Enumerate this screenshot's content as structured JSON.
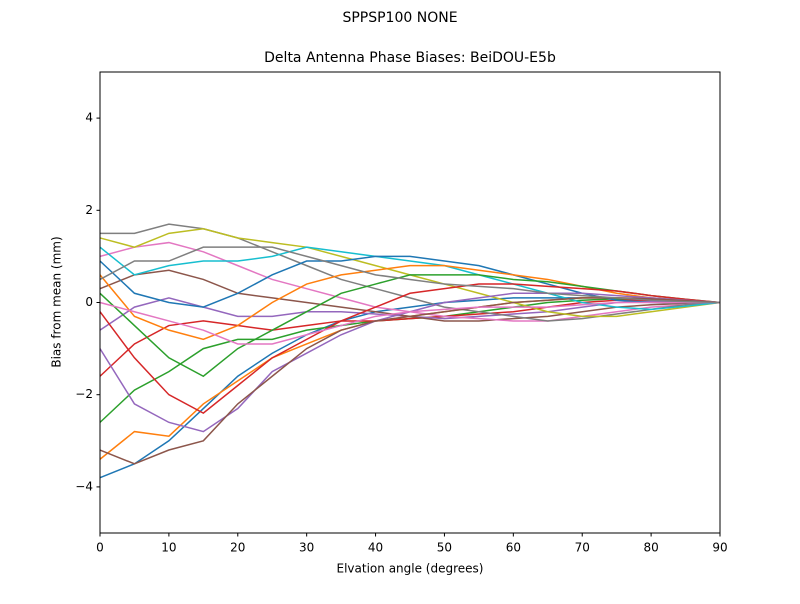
{
  "chart_data": {
    "type": "line",
    "suptitle": "SPPSP100        NONE",
    "title": "Delta Antenna Phase Biases: BeiDOU-E5b",
    "x_label": "Elvation angle (degrees)",
    "y_label": "Bias from mean (mm)",
    "xlim": [
      0,
      90
    ],
    "ylim": [
      -5,
      5
    ],
    "xticks": [
      0,
      10,
      20,
      30,
      40,
      50,
      60,
      70,
      80,
      90
    ],
    "yticks": [
      {
        "value": -4,
        "label": "−4"
      },
      {
        "value": -2,
        "label": "−2"
      },
      0,
      2,
      4
    ],
    "x": [
      0,
      5,
      10,
      15,
      20,
      25,
      30,
      35,
      40,
      45,
      50,
      55,
      60,
      65,
      70,
      75,
      80,
      85,
      90
    ],
    "series": [
      {
        "color": "#1f77b4",
        "values": [
          -3.8,
          -3.5,
          -3.0,
          -2.3,
          -1.6,
          -1.1,
          -0.7,
          -0.4,
          -0.2,
          -0.1,
          0.0,
          0.05,
          0.1,
          0.1,
          0.1,
          0.1,
          0.08,
          0.04,
          0
        ]
      },
      {
        "color": "#ff7f0e",
        "values": [
          -3.4,
          -2.8,
          -2.9,
          -2.2,
          -1.7,
          -1.2,
          -0.9,
          -0.6,
          -0.4,
          -0.3,
          -0.2,
          -0.1,
          0,
          0.05,
          0.1,
          0.1,
          0.08,
          0.04,
          0
        ]
      },
      {
        "color": "#2ca02c",
        "values": [
          -2.6,
          -1.9,
          -1.5,
          -1.0,
          -0.8,
          -0.8,
          -0.6,
          -0.5,
          -0.4,
          -0.35,
          -0.3,
          -0.2,
          -0.1,
          0,
          0.05,
          0.08,
          0.06,
          0.03,
          0
        ]
      },
      {
        "color": "#d62728",
        "values": [
          -1.6,
          -0.9,
          -0.5,
          -0.4,
          -0.5,
          -0.6,
          -0.5,
          -0.4,
          -0.4,
          -0.35,
          -0.3,
          -0.25,
          -0.2,
          -0.1,
          0,
          0.05,
          0.05,
          0.02,
          0
        ]
      },
      {
        "color": "#9467bd",
        "values": [
          -0.6,
          -0.1,
          0.1,
          -0.1,
          -0.3,
          -0.3,
          -0.2,
          -0.2,
          -0.25,
          -0.3,
          -0.35,
          -0.3,
          -0.25,
          -0.2,
          -0.1,
          0,
          0.02,
          0.01,
          0
        ]
      },
      {
        "color": "#8c564b",
        "values": [
          0.3,
          0.6,
          0.7,
          0.5,
          0.2,
          0.1,
          0.0,
          -0.1,
          -0.2,
          -0.3,
          -0.4,
          -0.4,
          -0.35,
          -0.3,
          -0.2,
          -0.1,
          -0.05,
          -0.02,
          0
        ]
      },
      {
        "color": "#e377c2",
        "values": [
          1.0,
          1.2,
          1.3,
          1.1,
          0.8,
          0.5,
          0.3,
          0.1,
          -0.1,
          -0.2,
          -0.3,
          -0.35,
          -0.4,
          -0.4,
          -0.3,
          -0.2,
          -0.1,
          -0.05,
          0
        ]
      },
      {
        "color": "#7f7f7f",
        "values": [
          1.5,
          1.5,
          1.7,
          1.6,
          1.4,
          1.1,
          0.8,
          0.5,
          0.3,
          0.1,
          -0.1,
          -0.2,
          -0.3,
          -0.4,
          -0.35,
          -0.25,
          -0.15,
          -0.05,
          0
        ]
      },
      {
        "color": "#bcbd22",
        "values": [
          1.4,
          1.2,
          1.5,
          1.6,
          1.4,
          1.3,
          1.2,
          1.0,
          0.8,
          0.6,
          0.4,
          0.2,
          0.0,
          -0.2,
          -0.3,
          -0.3,
          -0.2,
          -0.1,
          0
        ]
      },
      {
        "color": "#17becf",
        "values": [
          1.2,
          0.6,
          0.8,
          0.9,
          0.9,
          1.0,
          1.2,
          1.1,
          1.0,
          0.9,
          0.8,
          0.6,
          0.4,
          0.2,
          0.0,
          -0.1,
          -0.15,
          -0.08,
          0
        ]
      },
      {
        "color": "#1f77b4",
        "values": [
          0.9,
          0.2,
          0.0,
          -0.1,
          0.2,
          0.6,
          0.9,
          0.9,
          1.0,
          1.0,
          0.9,
          0.8,
          0.6,
          0.4,
          0.2,
          0.05,
          0,
          0,
          0
        ]
      },
      {
        "color": "#ff7f0e",
        "values": [
          0.6,
          -0.3,
          -0.6,
          -0.8,
          -0.5,
          0.0,
          0.4,
          0.6,
          0.7,
          0.8,
          0.8,
          0.7,
          0.6,
          0.5,
          0.35,
          0.2,
          0.1,
          0.05,
          0
        ]
      },
      {
        "color": "#2ca02c",
        "values": [
          0.2,
          -0.5,
          -1.2,
          -1.6,
          -1.0,
          -0.6,
          -0.2,
          0.2,
          0.4,
          0.6,
          0.6,
          0.6,
          0.5,
          0.45,
          0.35,
          0.25,
          0.15,
          0.07,
          0
        ]
      },
      {
        "color": "#d62728",
        "values": [
          -0.2,
          -1.2,
          -2.0,
          -2.4,
          -1.8,
          -1.2,
          -0.8,
          -0.4,
          -0.1,
          0.2,
          0.3,
          0.4,
          0.4,
          0.35,
          0.3,
          0.25,
          0.15,
          0.07,
          0
        ]
      },
      {
        "color": "#9467bd",
        "values": [
          -1.0,
          -2.2,
          -2.6,
          -2.8,
          -2.3,
          -1.5,
          -1.1,
          -0.7,
          -0.4,
          -0.2,
          0.0,
          0.1,
          0.2,
          0.2,
          0.2,
          0.15,
          0.1,
          0.05,
          0
        ]
      },
      {
        "color": "#8c564b",
        "values": [
          -3.2,
          -3.5,
          -3.2,
          -3.0,
          -2.2,
          -1.6,
          -1.0,
          -0.6,
          -0.4,
          -0.3,
          -0.2,
          -0.1,
          0,
          0.05,
          0.1,
          0.1,
          0.08,
          0.04,
          0
        ]
      },
      {
        "color": "#e377c2",
        "values": [
          0.0,
          -0.2,
          -0.4,
          -0.6,
          -0.9,
          -0.9,
          -0.7,
          -0.5,
          -0.3,
          -0.2,
          -0.15,
          -0.1,
          -0.1,
          -0.1,
          -0.05,
          0,
          0,
          0,
          0
        ]
      },
      {
        "color": "#7f7f7f",
        "values": [
          0.5,
          0.9,
          0.9,
          1.2,
          1.2,
          1.2,
          1.0,
          0.8,
          0.6,
          0.5,
          0.4,
          0.35,
          0.3,
          0.2,
          0.15,
          0.1,
          0.05,
          0.02,
          0
        ]
      }
    ]
  }
}
